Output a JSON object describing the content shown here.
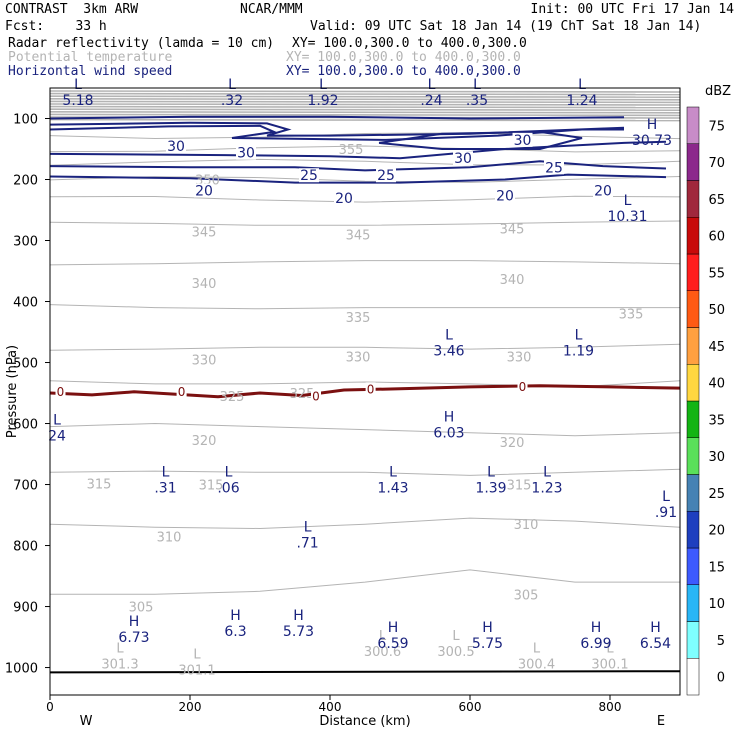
{
  "header": {
    "model": "CONTRAST  3km ARW",
    "center": "NCAR/MMM",
    "init": "Init: 00 UTC Fri 17 Jan 14",
    "fcst": "Fcst:    33 h",
    "valid": "Valid: 09 UTC Sat 18 Jan 14 (19 ChT Sat 18 Jan 14)",
    "fields": [
      {
        "name": "Radar reflectivity (lamda = 10 cm)",
        "xy": "XY= 100.0,300.0 to 400.0,300.0",
        "color": "#000000"
      },
      {
        "name": "Potential temperature",
        "xy": "XY= 100.0,300.0 to 400.0,300.0",
        "color": "#b4b4b4"
      },
      {
        "name": "Horizontal wind speed",
        "xy": "XY= 100.0,300.0 to 400.0,300.0",
        "color": "#1a237e"
      }
    ]
  },
  "chart_data": {
    "type": "cross-section",
    "xlabel": "Distance (km)",
    "ylabel": "Pressure (hPa)",
    "xlim": [
      0,
      900
    ],
    "ylim": [
      1045,
      50
    ],
    "xticks": [
      0,
      200,
      400,
      600,
      800
    ],
    "yticks": [
      100,
      200,
      300,
      400,
      500,
      600,
      700,
      800,
      900,
      1000
    ],
    "x_end_labels": {
      "left": "W",
      "right": "E"
    },
    "colorbar": {
      "unit": "dBZ",
      "levels": [
        0,
        5,
        10,
        15,
        20,
        25,
        30,
        35,
        40,
        45,
        50,
        55,
        60,
        65,
        70,
        75
      ],
      "colors": [
        "#ffffff",
        "#7fffff",
        "#29b6f6",
        "#3d5afe",
        "#1e3fbf",
        "#4682b4",
        "#5ae05a",
        "#14b414",
        "#ffd740",
        "#ffa040",
        "#ff5a14",
        "#ff1e1e",
        "#c80a0a",
        "#a0283c",
        "#8c288c",
        "#c88cc8"
      ]
    },
    "theta_contours": [
      {
        "label": "345",
        "p": [
          270,
          272,
          275,
          275,
          273,
          270,
          268
        ]
      },
      {
        "label": "340",
        "p": [
          340,
          338,
          335,
          333,
          333,
          335,
          338
        ]
      },
      {
        "label": "335",
        "p": [
          405,
          410,
          412,
          410,
          410,
          410,
          410
        ]
      },
      {
        "label": "330",
        "p": [
          480,
          478,
          475,
          475,
          478,
          475,
          470
        ]
      },
      {
        "label": "325",
        "p": [
          530,
          535,
          535,
          532,
          535,
          540,
          530
        ]
      },
      {
        "label": "320",
        "p": [
          605,
          600,
          605,
          610,
          615,
          620,
          615
        ]
      },
      {
        "label": "315",
        "p": [
          680,
          678,
          680,
          680,
          685,
          680,
          675
        ]
      },
      {
        "label": "310",
        "p": [
          765,
          770,
          772,
          765,
          755,
          760,
          770
        ]
      },
      {
        "label": "305",
        "p": [
          880,
          880,
          875,
          860,
          840,
          860,
          860
        ]
      }
    ],
    "theta_labels": [
      {
        "text": "355",
        "x": 430,
        "p": 150
      },
      {
        "text": "350",
        "x": 225,
        "p": 200
      },
      {
        "text": "345",
        "x": 220,
        "p": 285
      },
      {
        "text": "345",
        "x": 440,
        "p": 290
      },
      {
        "text": "345",
        "x": 660,
        "p": 280
      },
      {
        "text": "340",
        "x": 220,
        "p": 370
      },
      {
        "text": "340",
        "x": 660,
        "p": 363
      },
      {
        "text": "335",
        "x": 440,
        "p": 425
      },
      {
        "text": "335",
        "x": 830,
        "p": 420
      },
      {
        "text": "330",
        "x": 220,
        "p": 495
      },
      {
        "text": "330",
        "x": 440,
        "p": 490
      },
      {
        "text": "330",
        "x": 670,
        "p": 490
      },
      {
        "text": "325",
        "x": 260,
        "p": 555
      },
      {
        "text": "325",
        "x": 360,
        "p": 550
      },
      {
        "text": "320",
        "x": 220,
        "p": 627
      },
      {
        "text": "320",
        "x": 660,
        "p": 630
      },
      {
        "text": "315",
        "x": 70,
        "p": 698
      },
      {
        "text": "315",
        "x": 230,
        "p": 700
      },
      {
        "text": "315",
        "x": 670,
        "p": 700
      },
      {
        "text": "310",
        "x": 170,
        "p": 785
      },
      {
        "text": "310",
        "x": 680,
        "p": 765
      },
      {
        "text": "305",
        "x": 130,
        "p": 900
      },
      {
        "text": "305",
        "x": 680,
        "p": 880
      }
    ],
    "theta_extrema": [
      {
        "type": "L",
        "value": "301.3",
        "x": 100,
        "p": 985
      },
      {
        "type": "L",
        "value": "301.1",
        "x": 210,
        "p": 995
      },
      {
        "type": "L",
        "value": "300.6",
        "x": 475,
        "p": 965
      },
      {
        "type": "L",
        "value": "300.5",
        "x": 580,
        "p": 965
      },
      {
        "type": "L",
        "value": "300.4",
        "x": 695,
        "p": 985
      },
      {
        "type": "L",
        "value": "300.1",
        "x": 800,
        "p": 985
      }
    ],
    "wind_contours": [
      {
        "label": "30",
        "points": [
          [
            0,
            105
          ],
          [
            180,
            100
          ],
          [
            300,
            100
          ],
          [
            370,
            112
          ],
          [
            420,
            112
          ],
          [
            600,
            108
          ],
          [
            820,
            110
          ]
        ]
      }
    ],
    "wind_labels": [
      {
        "text": "30",
        "x": 180,
        "p": 145
      },
      {
        "text": "30",
        "x": 280,
        "p": 156
      },
      {
        "text": "30",
        "x": 675,
        "p": 135
      },
      {
        "text": "30",
        "x": 590,
        "p": 165
      },
      {
        "text": "25",
        "x": 370,
        "p": 193
      },
      {
        "text": "25",
        "x": 480,
        "p": 193
      },
      {
        "text": "25",
        "x": 720,
        "p": 180
      },
      {
        "text": "20",
        "x": 220,
        "p": 218
      },
      {
        "text": "20",
        "x": 420,
        "p": 230
      },
      {
        "text": "20",
        "x": 650,
        "p": 226
      },
      {
        "text": "20",
        "x": 790,
        "p": 218
      }
    ],
    "wind_extrema": [
      {
        "type": "L",
        "value": "5.18",
        "x": 40,
        "p": 65
      },
      {
        "type": "L",
        "value": ".32",
        "x": 260,
        "p": 65
      },
      {
        "type": "L",
        "value": "1.92",
        "x": 390,
        "p": 65
      },
      {
        "type": "L",
        "value": ".24",
        "x": 545,
        "p": 65
      },
      {
        "type": "L",
        "value": ".35",
        "x": 610,
        "p": 65
      },
      {
        "type": "L",
        "value": "1.24",
        "x": 760,
        "p": 65
      },
      {
        "type": "H",
        "value": "30.73",
        "x": 860,
        "p": 130
      },
      {
        "type": "L",
        "value": "10.31",
        "x": 825,
        "p": 255
      },
      {
        "type": "L",
        "value": "3.46",
        "x": 570,
        "p": 475
      },
      {
        "type": "L",
        "value": "1.19",
        "x": 755,
        "p": 475
      },
      {
        "type": "H",
        "value": "6.03",
        "x": 570,
        "p": 610
      },
      {
        "type": "L",
        "value": "24",
        "x": 10,
        "p": 615
      },
      {
        "type": "L",
        "value": ".31",
        "x": 165,
        "p": 700
      },
      {
        "type": "L",
        "value": ".06",
        "x": 255,
        "p": 700
      },
      {
        "type": "L",
        "value": "1.43",
        "x": 490,
        "p": 700
      },
      {
        "type": "L",
        "value": "1.39",
        "x": 630,
        "p": 700
      },
      {
        "type": "L",
        "value": "1.23",
        "x": 710,
        "p": 700
      },
      {
        "type": "L",
        "value": ".91",
        "x": 880,
        "p": 740
      },
      {
        "type": "L",
        "value": ".71",
        "x": 368,
        "p": 790
      },
      {
        "type": "H",
        "value": "6.73",
        "x": 120,
        "p": 945
      },
      {
        "type": "H",
        "value": "6.3",
        "x": 265,
        "p": 935
      },
      {
        "type": "H",
        "value": "5.73",
        "x": 355,
        "p": 935
      },
      {
        "type": "H",
        "value": "6.59",
        "x": 490,
        "p": 955
      },
      {
        "type": "H",
        "value": "5.75",
        "x": 625,
        "p": 955
      },
      {
        "type": "H",
        "value": "6.99",
        "x": 780,
        "p": 955
      },
      {
        "type": "H",
        "value": "6.54",
        "x": 865,
        "p": 955
      }
    ],
    "freezing_level_labels": [
      {
        "text": "0",
        "x": 15,
        "p": 548
      },
      {
        "text": "0",
        "x": 188,
        "p": 548
      },
      {
        "text": "0",
        "x": 380,
        "p": 556
      },
      {
        "text": "0",
        "x": 458,
        "p": 544
      },
      {
        "text": "0",
        "x": 675,
        "p": 540
      }
    ]
  }
}
